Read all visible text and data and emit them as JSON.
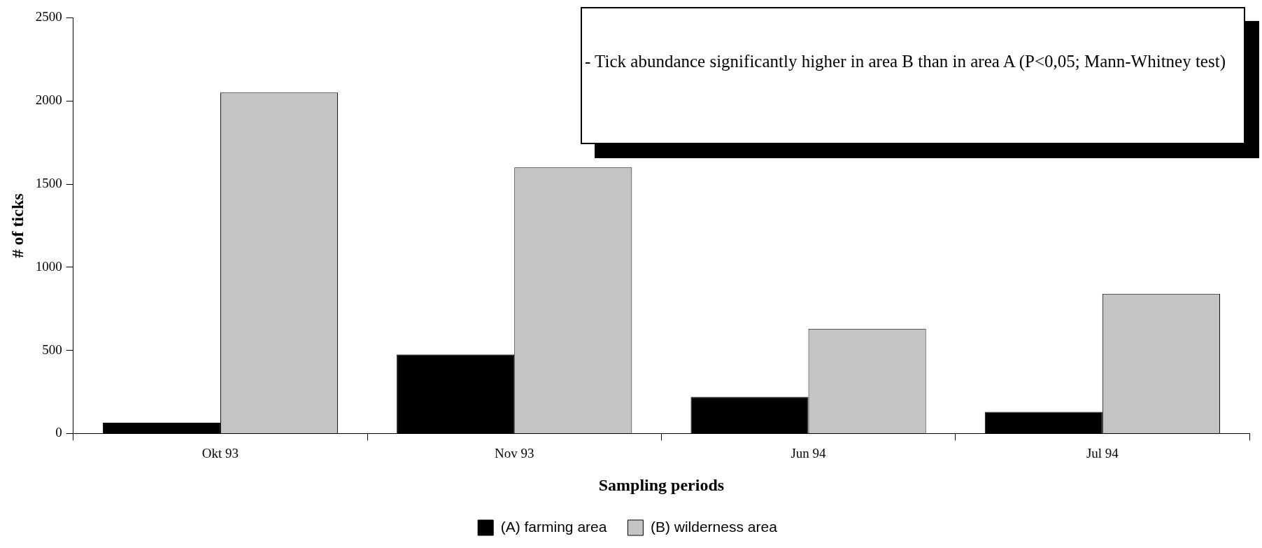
{
  "chart_data": {
    "type": "bar",
    "xlabel": "Sampling periods",
    "ylabel": "# of ticks",
    "categories": [
      "Okt 93",
      "Nov 93",
      "Jun 94",
      "Jul 94"
    ],
    "series": [
      {
        "name": "(A) farming area",
        "color": "#000000",
        "values": [
          65,
          475,
          220,
          130
        ]
      },
      {
        "name": "(B) wilderness area",
        "color": "#c4c4c4",
        "values": [
          2050,
          1600,
          630,
          840
        ]
      }
    ],
    "ylim": [
      0,
      2500
    ],
    "yticks": [
      0,
      500,
      1000,
      1500,
      2000,
      2500
    ],
    "grid": false,
    "legend": "bottom",
    "annotations": [
      "- Tick abundance significantly higher in area B than in area A (P<0,05; Mann-Whitney test)"
    ]
  }
}
